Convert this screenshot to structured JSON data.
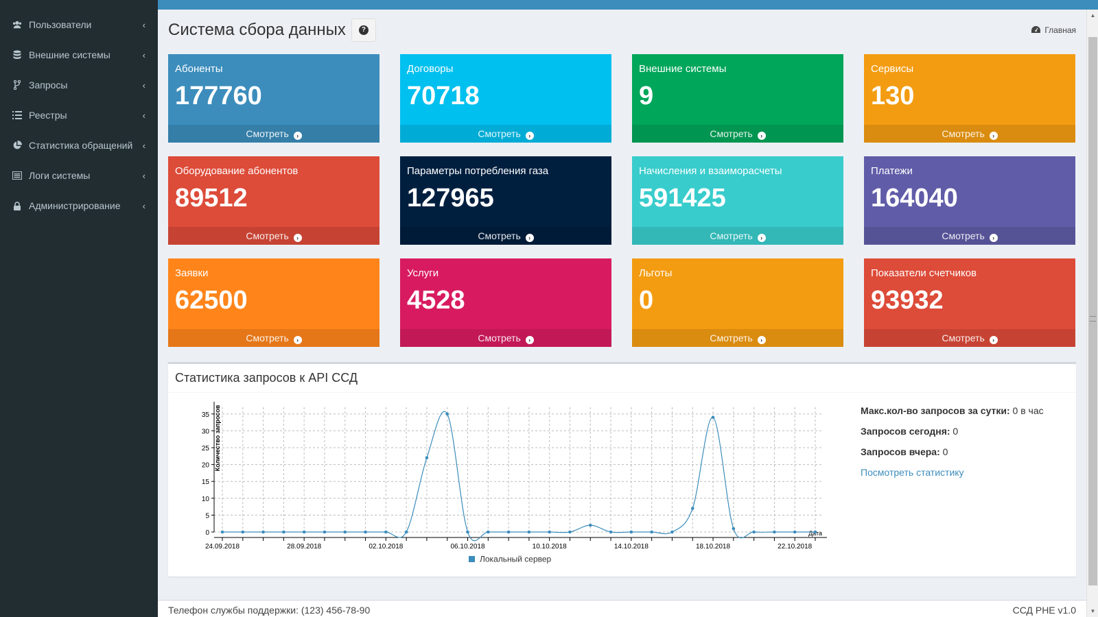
{
  "sidebar": {
    "items": [
      {
        "label": "Пользователи",
        "icon": "users-icon"
      },
      {
        "label": "Внешние системы",
        "icon": "database-icon"
      },
      {
        "label": "Запросы",
        "icon": "code-fork-icon"
      },
      {
        "label": "Реестры",
        "icon": "list-icon"
      },
      {
        "label": "Статистика обращений",
        "icon": "pie-chart-icon"
      },
      {
        "label": "Логи системы",
        "icon": "log-list-icon"
      },
      {
        "label": "Администрирование",
        "icon": "lock-icon"
      }
    ]
  },
  "header": {
    "title": "Система сбора данных",
    "breadcrumb": "Главная"
  },
  "tiles": [
    {
      "label": "Абоненты",
      "value": "177760",
      "link": "Смотреть",
      "color": "#3c8dbc"
    },
    {
      "label": "Договоры",
      "value": "70718",
      "link": "Смотреть",
      "color": "#00c0ef"
    },
    {
      "label": "Внешние системы",
      "value": "9",
      "link": "Смотреть",
      "color": "#00a65a"
    },
    {
      "label": "Сервисы",
      "value": "130",
      "link": "Смотреть",
      "color": "#f39c12"
    },
    {
      "label": "Оборудование абонентов",
      "value": "89512",
      "link": "Смотреть",
      "color": "#dd4b39"
    },
    {
      "label": "Параметры потребления газа",
      "value": "127965",
      "link": "Смотреть",
      "color": "#001f3f"
    },
    {
      "label": "Начисления и взаиморасчеты",
      "value": "591425",
      "link": "Смотреть",
      "color": "#39cccc"
    },
    {
      "label": "Платежи",
      "value": "164040",
      "link": "Смотреть",
      "color": "#605ca8"
    },
    {
      "label": "Заявки",
      "value": "62500",
      "link": "Смотреть",
      "color": "#ff851b"
    },
    {
      "label": "Услуги",
      "value": "4528",
      "link": "Смотреть",
      "color": "#d81b60"
    },
    {
      "label": "Льготы",
      "value": "0",
      "link": "Смотреть",
      "color": "#f39c12"
    },
    {
      "label": "Показатели счетчиков",
      "value": "93932",
      "link": "Смотреть",
      "color": "#dd4b39"
    }
  ],
  "stats_box": {
    "title": "Статистика запросов к API ССД",
    "max_label": "Макс.кол-во запросов за сутки:",
    "max_value": " 0 в час",
    "today_label": "Запросов сегодня:",
    "today_value": " 0",
    "yesterday_label": "Запросов вчера:",
    "yesterday_value": " 0",
    "link": "Посмотреть статистику"
  },
  "chart_data": {
    "type": "line",
    "title": "",
    "xlabel": "Дата",
    "ylabel": "Количество запросов",
    "ylim": [
      0,
      37
    ],
    "yticks": [
      0,
      5,
      10,
      15,
      20,
      25,
      30,
      35
    ],
    "x": [
      "24.09.2018",
      "25.09.2018",
      "26.09.2018",
      "27.09.2018",
      "28.09.2018",
      "29.09.2018",
      "30.09.2018",
      "01.10.2018",
      "02.10.2018",
      "03.10.2018",
      "04.10.2018",
      "05.10.2018",
      "06.10.2018",
      "07.10.2018",
      "08.10.2018",
      "09.10.2018",
      "10.10.2018",
      "11.10.2018",
      "12.10.2018",
      "13.10.2018",
      "14.10.2018",
      "15.10.2018",
      "16.10.2018",
      "17.10.2018",
      "18.10.2018",
      "19.10.2018",
      "20.10.2018",
      "21.10.2018",
      "22.10.2018",
      "23.10.2018"
    ],
    "xtick_labels": [
      "24.09.2018",
      "28.09.2018",
      "02.10.2018",
      "06.10.2018",
      "10.10.2018",
      "14.10.2018",
      "18.10.2018",
      "22.10.2018"
    ],
    "series": [
      {
        "name": "Локальный сервер",
        "color": "#3c8dbc",
        "values": [
          0,
          0,
          0,
          0,
          0,
          0,
          0,
          0,
          0,
          0,
          22,
          35,
          0,
          0,
          0,
          0,
          0,
          0,
          2,
          0,
          0,
          0,
          0,
          7,
          34,
          1,
          0,
          0,
          0,
          0
        ]
      }
    ],
    "grid": true,
    "legend": "bottom"
  },
  "footer": {
    "left": "Телефон службы поддержки: (123) 456-78-90",
    "right": "ССД РНЕ v1.0"
  }
}
